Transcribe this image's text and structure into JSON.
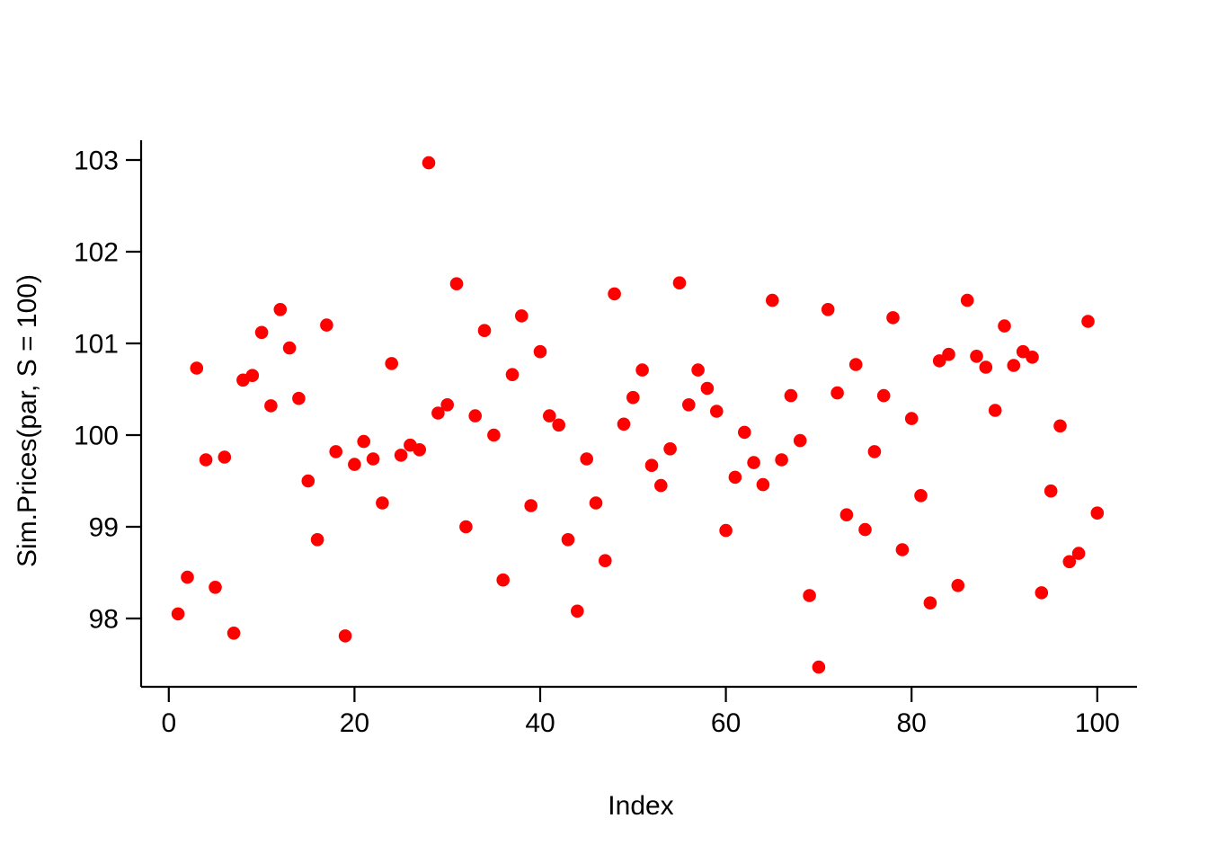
{
  "figure": {
    "background": "#ffffff",
    "axis_color": "#000000"
  },
  "chart_data": {
    "type": "scatter",
    "title": "",
    "xlabel": "Index",
    "ylabel": "Sim.Prices(par, S = 100)",
    "point_color": "#FF0000",
    "point_style": "filled-circle",
    "grid": false,
    "legend_position": "none",
    "x_ticks": [
      0,
      20,
      40,
      60,
      80,
      100
    ],
    "y_ticks": [
      98,
      99,
      100,
      101,
      102,
      103
    ],
    "xlim": [
      -3,
      104
    ],
    "ylim": [
      97.25,
      103.2
    ],
    "x": [
      1,
      2,
      3,
      4,
      5,
      6,
      7,
      8,
      9,
      10,
      11,
      12,
      13,
      14,
      15,
      16,
      17,
      18,
      19,
      20,
      21,
      22,
      23,
      24,
      25,
      26,
      27,
      28,
      29,
      30,
      31,
      32,
      33,
      34,
      35,
      36,
      37,
      38,
      39,
      40,
      41,
      42,
      43,
      44,
      45,
      46,
      47,
      48,
      49,
      50,
      51,
      52,
      53,
      54,
      55,
      56,
      57,
      58,
      59,
      60,
      61,
      62,
      63,
      64,
      65,
      66,
      67,
      68,
      69,
      70,
      71,
      72,
      73,
      74,
      75,
      76,
      77,
      78,
      79,
      80,
      81,
      82,
      83,
      84,
      85,
      86,
      87,
      88,
      89,
      90,
      91,
      92,
      93,
      94,
      95,
      96,
      97,
      98,
      99,
      100
    ],
    "values": [
      98.05,
      98.45,
      100.73,
      99.73,
      98.34,
      99.76,
      97.84,
      100.6,
      100.65,
      101.12,
      100.32,
      101.37,
      100.95,
      100.4,
      99.5,
      98.86,
      101.2,
      99.82,
      97.81,
      99.68,
      99.93,
      99.74,
      99.26,
      100.78,
      99.78,
      99.89,
      99.84,
      102.97,
      100.24,
      100.33,
      101.65,
      99.0,
      100.21,
      101.14,
      100.0,
      98.42,
      100.66,
      101.3,
      99.23,
      100.91,
      100.21,
      100.11,
      98.86,
      98.08,
      99.74,
      99.26,
      98.63,
      101.54,
      100.12,
      100.41,
      100.71,
      99.67,
      99.45,
      99.85,
      101.66,
      100.33,
      100.71,
      100.51,
      100.26,
      98.96,
      99.54,
      100.03,
      99.7,
      99.46,
      101.47,
      99.73,
      100.43,
      99.94,
      98.25,
      97.47,
      101.37,
      100.46,
      99.13,
      100.77,
      98.97,
      99.82,
      100.43,
      101.28,
      98.75,
      100.18,
      99.34,
      98.17,
      100.81,
      100.88,
      98.36,
      101.47,
      100.86,
      100.74,
      100.27,
      101.19,
      100.76,
      100.91,
      100.85,
      98.28,
      99.39,
      100.1,
      98.62,
      98.71,
      101.24,
      99.15
    ]
  }
}
